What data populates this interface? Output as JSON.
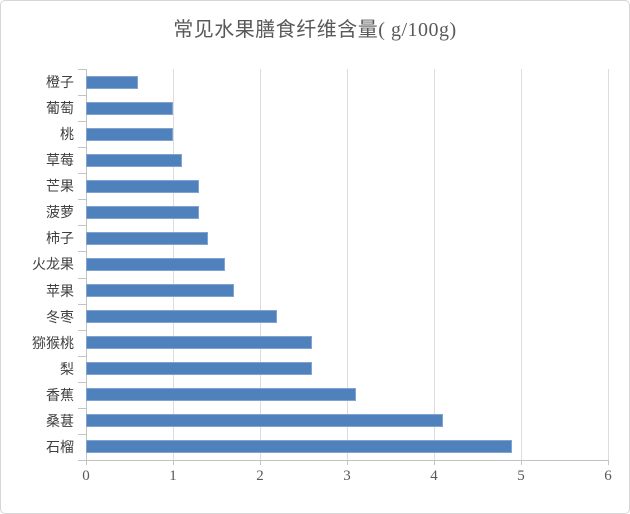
{
  "title": "常见水果膳食纤维含量( g/100g)",
  "colors": {
    "bar": "#4f81bd",
    "gridline": "#dcdcdc",
    "axis_line": "#c3c3c3",
    "title_text": "#595959",
    "category_text": "#3f3f3f",
    "tick_text": "#595959",
    "chart_border": "#d6d6d6",
    "background": "#ffffff"
  },
  "chart_data": {
    "type": "bar",
    "orientation": "horizontal",
    "title": "常见水果膳食纤维含量( g/100g)",
    "xlabel": "",
    "ylabel": "",
    "categories_top_to_bottom": [
      "橙子",
      "葡萄",
      "桃",
      "草莓",
      "芒果",
      "菠萝",
      "柿子",
      "火龙果",
      "苹果",
      "冬枣",
      "猕猴桃",
      "梨",
      "香蕉",
      "桑葚",
      "石榴"
    ],
    "values": [
      0.6,
      1.0,
      1.0,
      1.1,
      1.3,
      1.3,
      1.4,
      1.6,
      1.7,
      2.2,
      2.6,
      2.6,
      3.1,
      4.1,
      4.9
    ],
    "xlim": [
      0,
      6
    ],
    "xticks": [
      "0",
      "1",
      "2",
      "3",
      "4",
      "5",
      "6"
    ],
    "grid": "vertical",
    "legend": "none"
  }
}
